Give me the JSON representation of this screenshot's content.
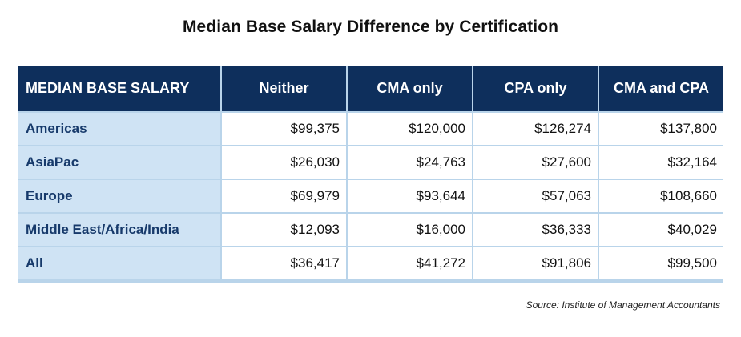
{
  "title": "Median Base Salary Difference by Certification",
  "source": "Source: Institute of Management Accountants",
  "chart_data": {
    "type": "table",
    "title": "Median Base Salary Difference by Certification",
    "columns": [
      "MEDIAN BASE SALARY",
      "Neither",
      "CMA only",
      "CPA only",
      "CMA and CPA"
    ],
    "rows": [
      {
        "region": "Americas",
        "values": [
          "$99,375",
          "$120,000",
          "$126,274",
          "$137,800"
        ]
      },
      {
        "region": "AsiaPac",
        "values": [
          "$26,030",
          "$24,763",
          "$27,600",
          "$32,164"
        ]
      },
      {
        "region": "Europe",
        "values": [
          "$69,979",
          "$93,644",
          "$57,063",
          "$108,660"
        ]
      },
      {
        "region": "Middle East/Africa/India",
        "values": [
          "$12,093",
          "$16,000",
          "$36,333",
          "$40,029"
        ]
      },
      {
        "region": "All",
        "values": [
          "$36,417",
          "$41,272",
          "$91,806",
          "$99,500"
        ]
      }
    ],
    "colors": {
      "header_bg": "#0e2f5c",
      "region_bg": "#cfe3f4",
      "border": "#b9d4ea"
    }
  }
}
